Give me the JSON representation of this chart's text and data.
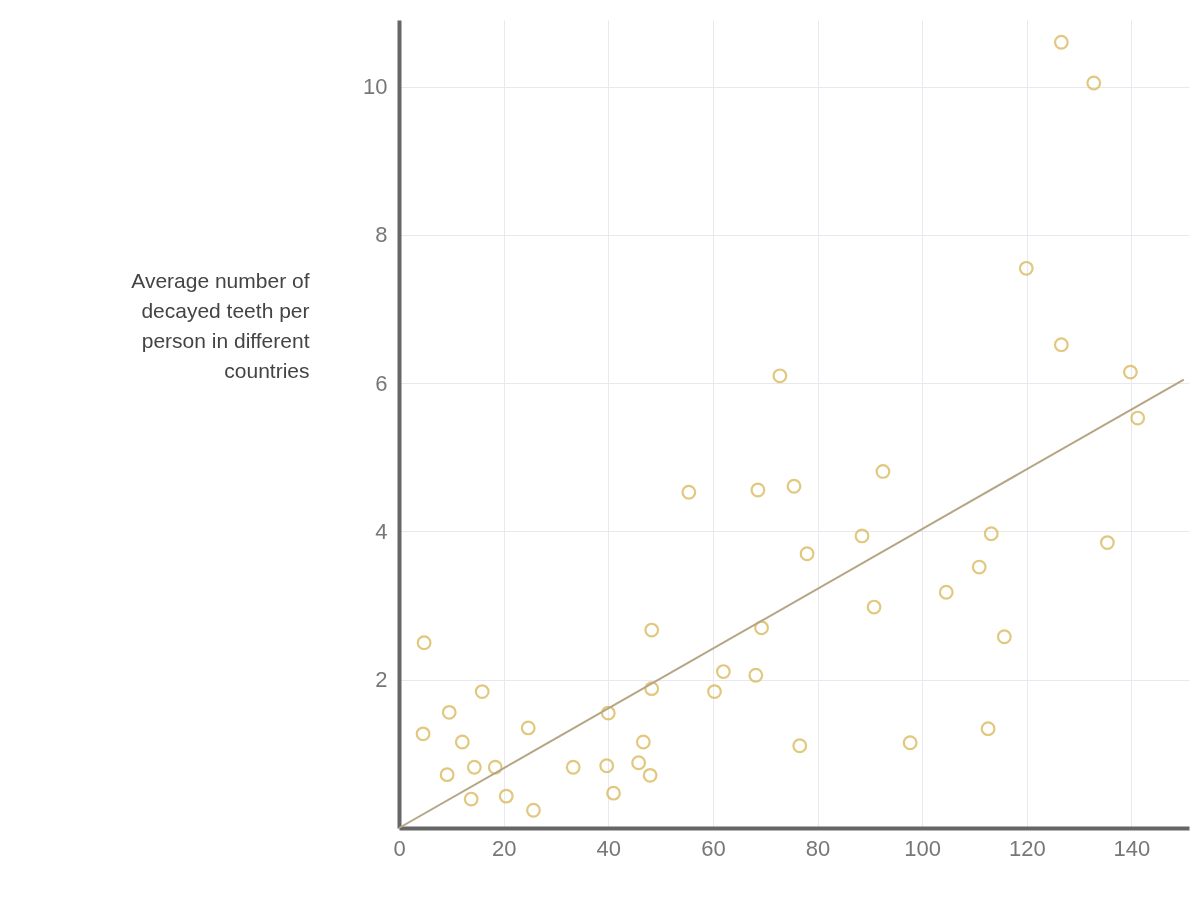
{
  "chart_data": {
    "type": "scatter",
    "ylabel": "Average number of decayed teeth per person in different countries",
    "series": [
      {
        "color": "#d4b24a",
        "marker": "circle",
        "x": [
          4.8,
          4.6,
          9.6,
          9.2,
          12.1,
          15.9,
          14.4,
          13.8,
          18.4,
          20.5,
          24.7,
          25.7,
          33.3,
          39.7,
          40,
          41,
          45.8,
          46.7,
          48,
          48.3,
          48.3,
          55.4,
          60.3,
          62,
          68.6,
          68.2,
          69.3,
          72.8,
          75.5,
          76.6,
          78,
          88.5,
          90.8,
          92.5,
          97.7,
          104.6,
          110.9,
          112.6,
          113.2,
          115.7,
          119.9,
          126.6,
          126.6,
          132.8,
          135.4,
          139.8,
          141.2
        ],
        "values": [
          2.5,
          1.27,
          1.56,
          0.72,
          1.16,
          1.84,
          0.82,
          0.39,
          0.82,
          0.43,
          1.35,
          0.24,
          0.82,
          0.84,
          1.55,
          0.47,
          0.88,
          1.16,
          0.71,
          2.67,
          1.88,
          4.53,
          1.84,
          2.11,
          4.56,
          2.06,
          2.7,
          6.1,
          4.61,
          1.11,
          3.7,
          3.94,
          2.98,
          4.81,
          1.15,
          3.18,
          3.52,
          1.34,
          3.97,
          2.58,
          7.55,
          6.52,
          10.6,
          10.05,
          3.85,
          6.15,
          5.53
        ]
      },
      {
        "type": "line",
        "color": "#b5a585",
        "x": [
          0,
          150
        ],
        "values": [
          0,
          6.05
        ]
      }
    ],
    "xlim": [
      0,
      151
    ],
    "ylim": [
      0,
      10.9
    ],
    "xticks": [
      0,
      20,
      40,
      60,
      80,
      100,
      120,
      140
    ],
    "yticks": [
      2,
      4,
      6,
      8,
      10
    ],
    "grid": true,
    "line_style": "solid"
  }
}
